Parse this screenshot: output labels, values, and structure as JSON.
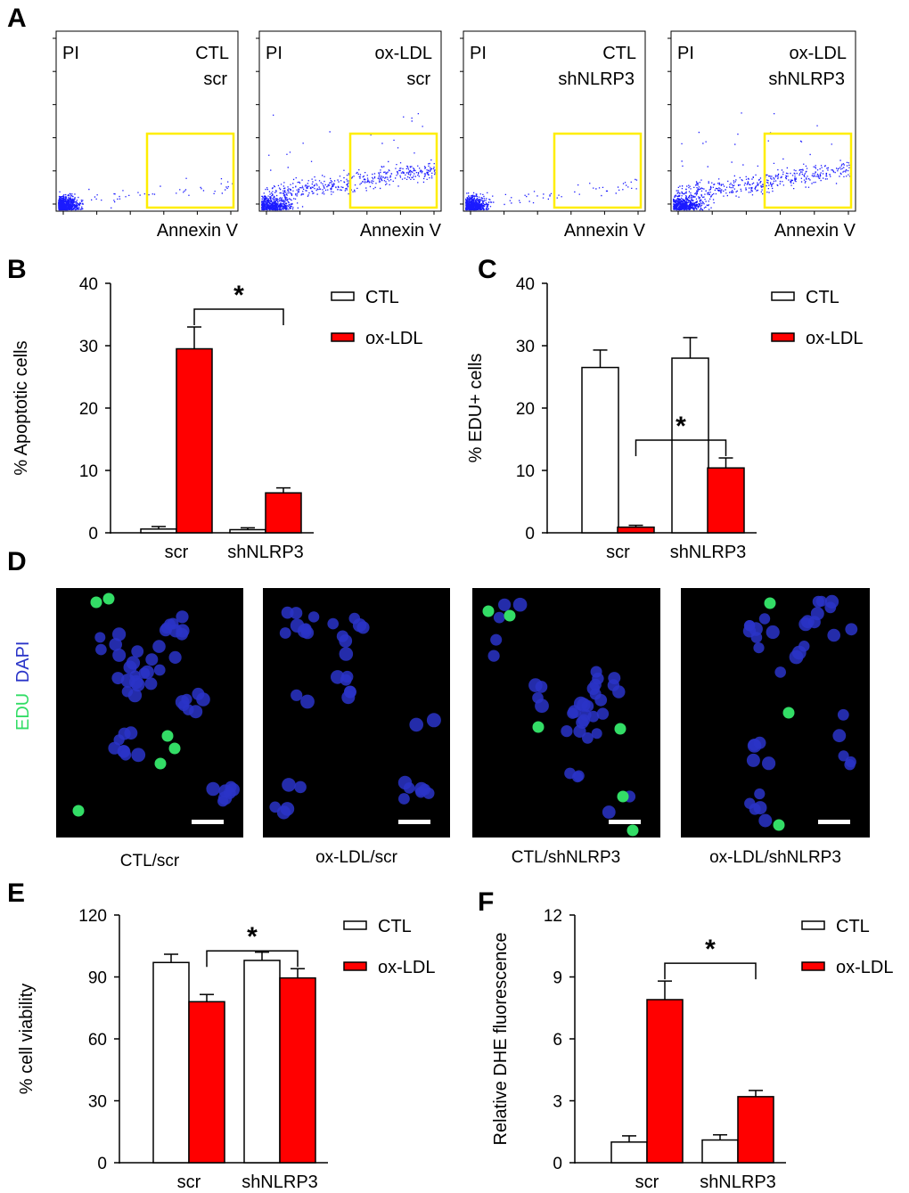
{
  "panel_letters": [
    "A",
    "B",
    "C",
    "D",
    "E",
    "F"
  ],
  "colors": {
    "ctl": "#ffffff",
    "oxldl": "#ff0000",
    "dots": "#1a1aff",
    "gate": "#ffee00",
    "edu": "#33dd66",
    "dapi": "#2a34c8",
    "image_bg": "#000000"
  },
  "flow": {
    "y_label": "PI",
    "x_label": "Annexin V",
    "panels": [
      {
        "line1": "CTL",
        "line2": "scr"
      },
      {
        "line1": "ox-LDL",
        "line2": "scr"
      },
      {
        "line1": "CTL",
        "line2": "shNLRP3"
      },
      {
        "line1": "ox-LDL",
        "line2": "shNLRP3"
      }
    ]
  },
  "micro": {
    "stain_edu": "EDU",
    "stain_dapi": "DAPI",
    "captions": [
      "CTL/scr",
      "ox-LDL/scr",
      "CTL/shNLRP3",
      "ox-LDL/shNLRP3"
    ]
  },
  "sig_mark": "*",
  "chart_data": [
    {
      "id": "B",
      "type": "bar",
      "ylabel": "% Apoptotic cells",
      "categories": [
        "scr",
        "shNLRP3"
      ],
      "ylim": [
        0,
        40
      ],
      "yticks": [
        "0",
        "10",
        "20",
        "30",
        "40"
      ],
      "series": [
        {
          "name": "CTL",
          "values": [
            0.6,
            0.5
          ],
          "errors": [
            0.4,
            0.3
          ]
        },
        {
          "name": "ox-LDL",
          "values": [
            29.5,
            6.4
          ],
          "errors": [
            3.5,
            0.8
          ]
        }
      ],
      "legend": "top-right",
      "significance": "*"
    },
    {
      "id": "C",
      "type": "bar",
      "ylabel": "% EDU+ cells",
      "categories": [
        "scr",
        "shNLRP3"
      ],
      "ylim": [
        0,
        40
      ],
      "yticks": [
        "0",
        "10",
        "20",
        "30",
        "40"
      ],
      "series": [
        {
          "name": "CTL",
          "values": [
            26.5,
            28.0
          ],
          "errors": [
            2.8,
            3.3
          ]
        },
        {
          "name": "ox-LDL",
          "values": [
            0.9,
            10.4
          ],
          "errors": [
            0.3,
            1.6
          ]
        }
      ],
      "legend": "top-right",
      "significance": "*"
    },
    {
      "id": "E",
      "type": "bar",
      "ylabel": "% cell viability",
      "categories": [
        "scr",
        "shNLRP3"
      ],
      "ylim": [
        0,
        120
      ],
      "yticks": [
        "0",
        "30",
        "60",
        "90",
        "120"
      ],
      "series": [
        {
          "name": "CTL",
          "values": [
            97,
            98
          ],
          "errors": [
            4,
            4
          ]
        },
        {
          "name": "ox-LDL",
          "values": [
            78,
            89.5
          ],
          "errors": [
            3.5,
            4.5
          ]
        }
      ],
      "legend": "top-right",
      "significance": "*"
    },
    {
      "id": "F",
      "type": "bar",
      "ylabel": "Relative DHE fluorescence",
      "categories": [
        "scr",
        "shNLRP3"
      ],
      "ylim": [
        0,
        12
      ],
      "yticks": [
        "0",
        "3",
        "6",
        "9",
        "12"
      ],
      "series": [
        {
          "name": "CTL",
          "values": [
            1.0,
            1.1
          ],
          "errors": [
            0.3,
            0.25
          ]
        },
        {
          "name": "ox-LDL",
          "values": [
            7.9,
            3.2
          ],
          "errors": [
            0.9,
            0.3
          ]
        }
      ],
      "legend": "top-right",
      "significance": "*"
    }
  ]
}
